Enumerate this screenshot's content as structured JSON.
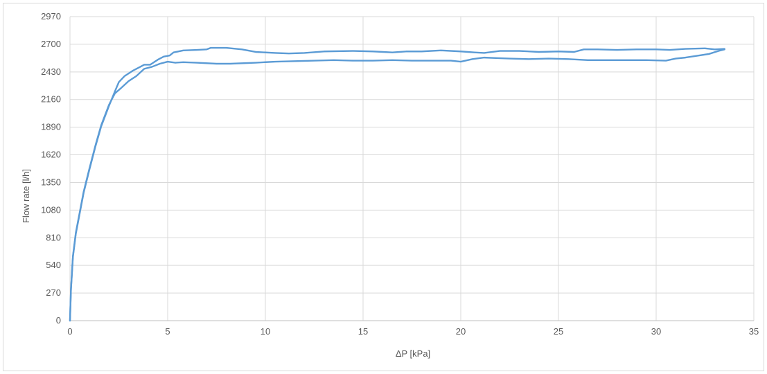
{
  "chart_data": {
    "type": "line",
    "title": "",
    "xlabel": "ΔP [kPa]",
    "ylabel": "Flow rate [l/h]",
    "xlim": [
      0,
      35
    ],
    "ylim": [
      0,
      2970
    ],
    "x_ticks": [
      0,
      5,
      10,
      15,
      20,
      25,
      30,
      35
    ],
    "y_ticks": [
      0,
      270,
      540,
      810,
      1080,
      1350,
      1620,
      1890,
      2160,
      2430,
      2700,
      2970
    ],
    "grid": true,
    "legend": "none",
    "color": "#5b9bd5",
    "series": [
      {
        "points": [
          [
            0,
            0
          ],
          [
            0.05,
            300
          ],
          [
            0.15,
            620
          ],
          [
            0.3,
            850
          ],
          [
            0.5,
            1050
          ],
          [
            0.7,
            1250
          ],
          [
            1.0,
            1480
          ],
          [
            1.3,
            1700
          ],
          [
            1.6,
            1900
          ],
          [
            2.0,
            2100
          ],
          [
            2.3,
            2240
          ],
          [
            2.5,
            2330
          ],
          [
            2.8,
            2390
          ],
          [
            3.2,
            2440
          ],
          [
            3.6,
            2480
          ],
          [
            3.8,
            2500
          ],
          [
            4.1,
            2500
          ],
          [
            4.5,
            2550
          ],
          [
            4.8,
            2580
          ],
          [
            5.1,
            2590
          ],
          [
            5.3,
            2620
          ],
          [
            5.8,
            2640
          ],
          [
            6.5,
            2645
          ],
          [
            7.0,
            2650
          ],
          [
            7.2,
            2665
          ],
          [
            8.0,
            2665
          ],
          [
            8.8,
            2650
          ],
          [
            9.5,
            2625
          ],
          [
            10.5,
            2615
          ],
          [
            11.2,
            2610
          ],
          [
            12.0,
            2615
          ],
          [
            13.0,
            2630
          ],
          [
            14.5,
            2635
          ],
          [
            15.5,
            2630
          ],
          [
            16.5,
            2620
          ],
          [
            17.2,
            2630
          ],
          [
            18.0,
            2630
          ],
          [
            19.0,
            2640
          ],
          [
            20.0,
            2630
          ],
          [
            20.7,
            2620
          ],
          [
            21.2,
            2615
          ],
          [
            22.0,
            2635
          ],
          [
            23.0,
            2635
          ],
          [
            24.0,
            2625
          ],
          [
            25.0,
            2630
          ],
          [
            25.8,
            2625
          ],
          [
            26.3,
            2650
          ],
          [
            27.0,
            2650
          ],
          [
            28.0,
            2645
          ],
          [
            29.0,
            2650
          ],
          [
            30.0,
            2650
          ],
          [
            30.7,
            2645
          ],
          [
            31.5,
            2655
          ],
          [
            32.5,
            2660
          ],
          [
            33.0,
            2650
          ],
          [
            33.5,
            2655
          ]
        ]
      },
      {
        "points": [
          [
            0,
            0
          ],
          [
            0.05,
            310
          ],
          [
            0.15,
            630
          ],
          [
            0.3,
            860
          ],
          [
            0.5,
            1060
          ],
          [
            0.7,
            1260
          ],
          [
            1.0,
            1490
          ],
          [
            1.3,
            1710
          ],
          [
            1.6,
            1910
          ],
          [
            2.0,
            2110
          ],
          [
            2.3,
            2220
          ],
          [
            2.6,
            2270
          ],
          [
            3.0,
            2340
          ],
          [
            3.4,
            2390
          ],
          [
            3.8,
            2460
          ],
          [
            4.2,
            2480
          ],
          [
            4.6,
            2510
          ],
          [
            5.0,
            2530
          ],
          [
            5.4,
            2520
          ],
          [
            5.8,
            2525
          ],
          [
            6.5,
            2520
          ],
          [
            7.5,
            2510
          ],
          [
            8.2,
            2510
          ],
          [
            9.5,
            2520
          ],
          [
            10.5,
            2530
          ],
          [
            11.5,
            2535
          ],
          [
            12.5,
            2540
          ],
          [
            13.5,
            2545
          ],
          [
            14.5,
            2540
          ],
          [
            15.5,
            2540
          ],
          [
            16.5,
            2545
          ],
          [
            17.5,
            2540
          ],
          [
            18.5,
            2540
          ],
          [
            19.5,
            2540
          ],
          [
            20.0,
            2530
          ],
          [
            20.6,
            2555
          ],
          [
            21.2,
            2570
          ],
          [
            21.8,
            2565
          ],
          [
            22.5,
            2560
          ],
          [
            23.5,
            2555
          ],
          [
            24.5,
            2560
          ],
          [
            25.5,
            2555
          ],
          [
            26.5,
            2545
          ],
          [
            27.5,
            2545
          ],
          [
            28.5,
            2545
          ],
          [
            29.5,
            2545
          ],
          [
            30.5,
            2540
          ],
          [
            31.0,
            2560
          ],
          [
            31.5,
            2570
          ],
          [
            32.0,
            2585
          ],
          [
            32.7,
            2605
          ],
          [
            33.2,
            2635
          ],
          [
            33.5,
            2650
          ]
        ]
      }
    ]
  }
}
